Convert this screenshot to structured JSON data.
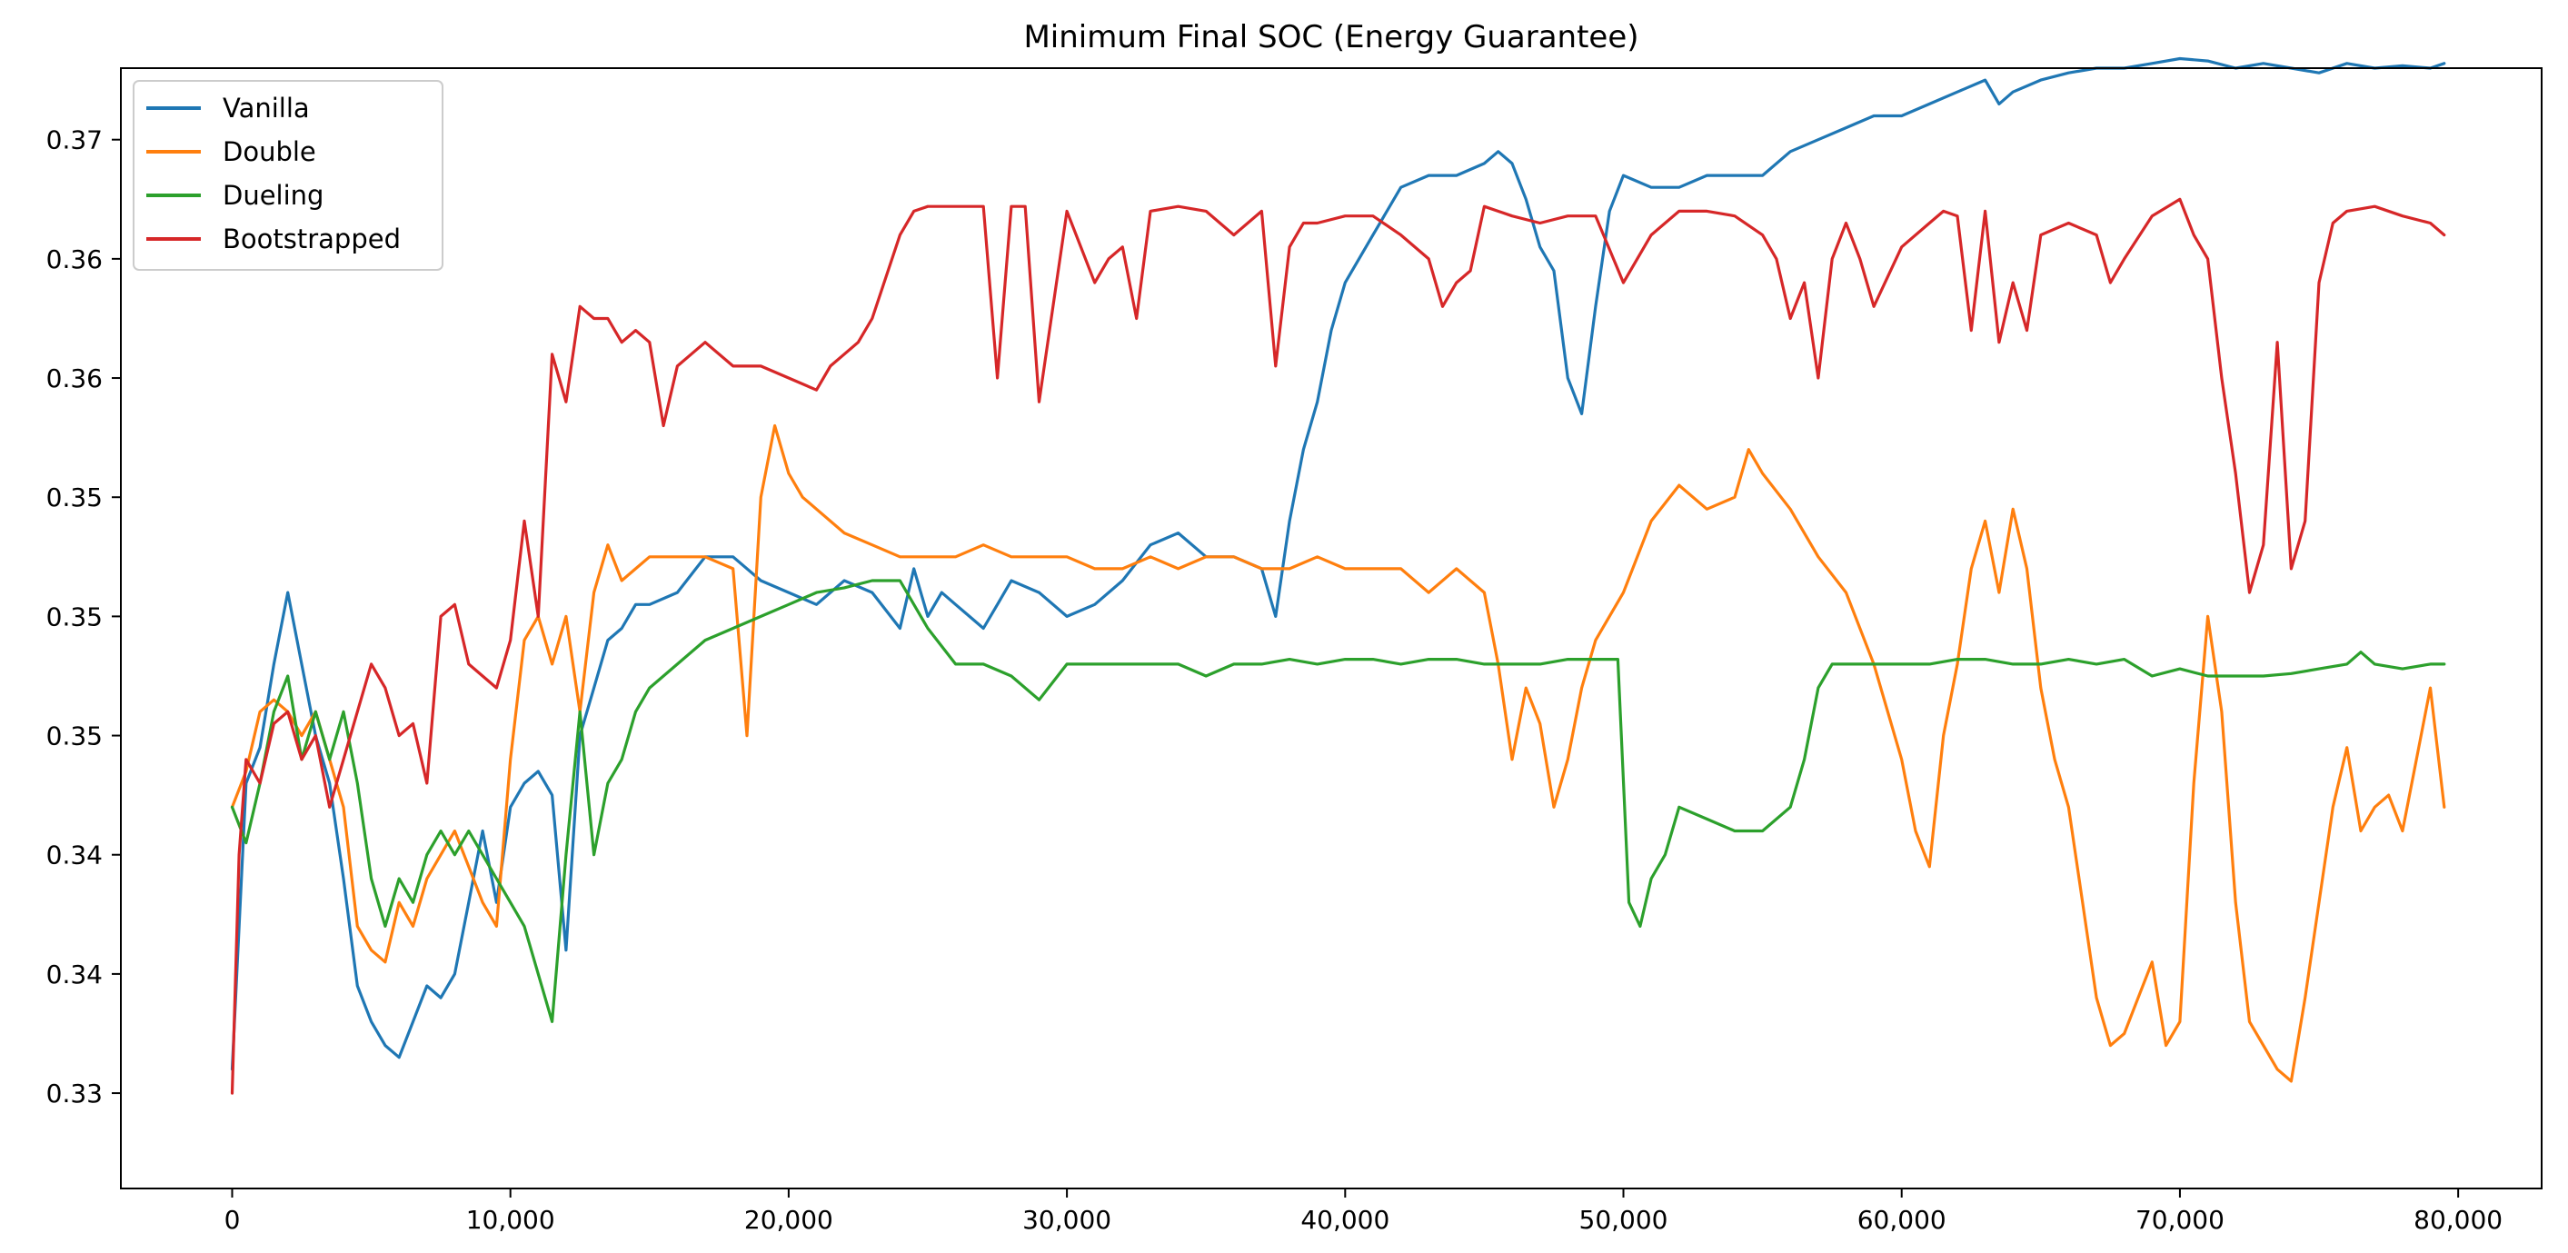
{
  "chart_data": {
    "type": "line",
    "title": "Minimum Final SOC (Energy Guarantee)",
    "xlabel": "",
    "ylabel": "",
    "xlim": [
      -4000,
      83000
    ],
    "ylim": [
      0.326,
      0.373
    ],
    "x_ticks": [
      0,
      10000,
      20000,
      30000,
      40000,
      50000,
      60000,
      70000,
      80000
    ],
    "x_tick_labels": [
      "0",
      "10,000",
      "20,000",
      "30,000",
      "40,000",
      "50,000",
      "60,000",
      "70,000",
      "80,000"
    ],
    "y_ticks": [
      0.33,
      0.335,
      0.34,
      0.345,
      0.35,
      0.355,
      0.36,
      0.365,
      0.37
    ],
    "y_tick_labels": [
      "0.33",
      "0.34",
      "0.34",
      "0.35",
      "0.35",
      "0.35",
      "0.36",
      "0.36",
      "0.37"
    ],
    "grid": false,
    "legend": "upper-left",
    "series": [
      {
        "name": "Vanilla",
        "color": "#1f77b4",
        "x": [
          0,
          500,
          1000,
          1500,
          2000,
          2500,
          3000,
          3500,
          4000,
          4500,
          5000,
          5500,
          6000,
          6500,
          7000,
          7500,
          8000,
          8500,
          9000,
          9500,
          10000,
          10500,
          11000,
          11500,
          12000,
          12500,
          13000,
          13500,
          14000,
          14500,
          15000,
          16000,
          17000,
          18000,
          19000,
          20000,
          21000,
          22000,
          23000,
          24000,
          24500,
          25000,
          25500,
          26000,
          26500,
          27000,
          27500,
          28000,
          29000,
          30000,
          31000,
          32000,
          33000,
          34000,
          35000,
          36000,
          37000,
          37500,
          38000,
          38500,
          39000,
          39500,
          40000,
          41000,
          42000,
          43000,
          44000,
          45000,
          45500,
          46000,
          46500,
          47000,
          47500,
          48000,
          48500,
          49000,
          49500,
          50000,
          51000,
          52000,
          53000,
          54000,
          55000,
          56000,
          57000,
          58000,
          59000,
          60000,
          61000,
          62000,
          63000,
          63500,
          64000,
          65000,
          66000,
          67000,
          68000,
          69000,
          70000,
          71000,
          72000,
          73000,
          74000,
          75000,
          76000,
          77000,
          78000,
          79000,
          79500
        ],
        "values": [
          0.331,
          0.343,
          0.3445,
          0.348,
          0.351,
          0.348,
          0.345,
          0.343,
          0.339,
          0.3345,
          0.333,
          0.332,
          0.3315,
          0.333,
          0.3345,
          0.334,
          0.335,
          0.338,
          0.341,
          0.338,
          0.342,
          0.343,
          0.3435,
          0.3425,
          0.336,
          0.345,
          0.347,
          0.349,
          0.3495,
          0.3505,
          0.3505,
          0.351,
          0.3525,
          0.3525,
          0.3515,
          0.351,
          0.3505,
          0.3515,
          0.351,
          0.3495,
          0.352,
          0.35,
          0.351,
          0.3505,
          0.35,
          0.3495,
          0.3505,
          0.3515,
          0.351,
          0.35,
          0.3505,
          0.3515,
          0.353,
          0.3535,
          0.3525,
          0.3525,
          0.352,
          0.35,
          0.354,
          0.357,
          0.359,
          0.362,
          0.364,
          0.366,
          0.368,
          0.3685,
          0.3685,
          0.369,
          0.3695,
          0.369,
          0.3675,
          0.3655,
          0.3645,
          0.36,
          0.3585,
          0.363,
          0.367,
          0.3685,
          0.368,
          0.368,
          0.3685,
          0.3685,
          0.3685,
          0.3695,
          0.37,
          0.3705,
          0.371,
          0.371,
          0.3715,
          0.372,
          0.3725,
          0.3715,
          0.372,
          0.3725,
          0.3728,
          0.373,
          0.373,
          0.3732,
          0.3734,
          0.3733,
          0.373,
          0.3732,
          0.373,
          0.3728,
          0.3732,
          0.373,
          0.3731,
          0.373,
          0.3732
        ]
      },
      {
        "name": "Double",
        "color": "#ff7f0e",
        "x": [
          0,
          500,
          1000,
          1500,
          2000,
          2500,
          3000,
          3500,
          4000,
          4500,
          5000,
          5500,
          6000,
          6500,
          7000,
          7500,
          8000,
          8500,
          9000,
          9500,
          10000,
          10500,
          11000,
          11500,
          12000,
          12500,
          13000,
          13500,
          14000,
          14500,
          15000,
          16000,
          17000,
          18000,
          18500,
          19000,
          19500,
          20000,
          20500,
          21000,
          22000,
          23000,
          24000,
          25000,
          26000,
          27000,
          28000,
          29000,
          30000,
          31000,
          32000,
          33000,
          34000,
          35000,
          36000,
          37000,
          38000,
          39000,
          40000,
          41000,
          42000,
          43000,
          44000,
          45000,
          45500,
          46000,
          46500,
          47000,
          47500,
          48000,
          48500,
          49000,
          50000,
          51000,
          52000,
          53000,
          54000,
          54500,
          55000,
          56000,
          57000,
          58000,
          59000,
          60000,
          60500,
          61000,
          61500,
          62000,
          62500,
          63000,
          63500,
          64000,
          64500,
          65000,
          65500,
          66000,
          66500,
          67000,
          67500,
          68000,
          68500,
          69000,
          69500,
          70000,
          70500,
          71000,
          71500,
          72000,
          72500,
          73000,
          73500,
          74000,
          74500,
          75000,
          75500,
          76000,
          76500,
          77000,
          77500,
          78000,
          78500,
          79000,
          79500
        ],
        "values": [
          0.342,
          0.3435,
          0.346,
          0.3465,
          0.346,
          0.345,
          0.346,
          0.344,
          0.342,
          0.337,
          0.336,
          0.3355,
          0.338,
          0.337,
          0.339,
          0.34,
          0.341,
          0.3395,
          0.338,
          0.337,
          0.344,
          0.349,
          0.35,
          0.348,
          0.35,
          0.346,
          0.351,
          0.353,
          0.3515,
          0.352,
          0.3525,
          0.3525,
          0.3525,
          0.352,
          0.345,
          0.355,
          0.358,
          0.356,
          0.355,
          0.3545,
          0.3535,
          0.353,
          0.3525,
          0.3525,
          0.3525,
          0.353,
          0.3525,
          0.3525,
          0.3525,
          0.352,
          0.352,
          0.3525,
          0.352,
          0.3525,
          0.3525,
          0.352,
          0.352,
          0.3525,
          0.352,
          0.352,
          0.352,
          0.351,
          0.352,
          0.351,
          0.348,
          0.344,
          0.347,
          0.3455,
          0.342,
          0.344,
          0.347,
          0.349,
          0.351,
          0.354,
          0.3555,
          0.3545,
          0.355,
          0.357,
          0.356,
          0.3545,
          0.3525,
          0.351,
          0.348,
          0.344,
          0.341,
          0.3395,
          0.345,
          0.348,
          0.352,
          0.354,
          0.351,
          0.3545,
          0.352,
          0.347,
          0.344,
          0.342,
          0.338,
          0.334,
          0.332,
          0.3325,
          0.334,
          0.3355,
          0.332,
          0.333,
          0.343,
          0.35,
          0.346,
          0.338,
          0.333,
          0.332,
          0.331,
          0.3305,
          0.334,
          0.338,
          0.342,
          0.3445,
          0.341,
          0.342,
          0.3425,
          0.341,
          0.344,
          0.347,
          0.342
        ]
      },
      {
        "name": "Dueling",
        "color": "#2ca02c",
        "x": [
          0,
          500,
          1000,
          1500,
          2000,
          2500,
          3000,
          3500,
          4000,
          4500,
          5000,
          5500,
          6000,
          6500,
          7000,
          7500,
          8000,
          8500,
          9000,
          9500,
          10000,
          10500,
          11000,
          11500,
          12000,
          12500,
          13000,
          13500,
          14000,
          14500,
          15000,
          16000,
          17000,
          18000,
          19000,
          20000,
          21000,
          22000,
          23000,
          24000,
          25000,
          26000,
          27000,
          28000,
          29000,
          30000,
          31000,
          32000,
          33000,
          34000,
          35000,
          36000,
          37000,
          38000,
          39000,
          40000,
          41000,
          42000,
          43000,
          44000,
          45000,
          46000,
          47000,
          48000,
          49000,
          49800,
          50200,
          50600,
          51000,
          51500,
          52000,
          53000,
          54000,
          55000,
          56000,
          56500,
          57000,
          57500,
          58000,
          59000,
          60000,
          61000,
          62000,
          63000,
          64000,
          65000,
          66000,
          67000,
          68000,
          69000,
          70000,
          71000,
          72000,
          73000,
          74000,
          75000,
          76000,
          76500,
          77000,
          78000,
          79000,
          79500
        ],
        "values": [
          0.342,
          0.3405,
          0.343,
          0.346,
          0.3475,
          0.344,
          0.346,
          0.344,
          0.346,
          0.343,
          0.339,
          0.337,
          0.339,
          0.338,
          0.34,
          0.341,
          0.34,
          0.341,
          0.34,
          0.339,
          0.338,
          0.337,
          0.335,
          0.333,
          0.34,
          0.346,
          0.34,
          0.343,
          0.344,
          0.346,
          0.347,
          0.348,
          0.349,
          0.3495,
          0.35,
          0.3505,
          0.351,
          0.3512,
          0.3515,
          0.3515,
          0.3495,
          0.348,
          0.348,
          0.3475,
          0.3465,
          0.348,
          0.348,
          0.348,
          0.348,
          0.348,
          0.3475,
          0.348,
          0.348,
          0.3482,
          0.348,
          0.3482,
          0.3482,
          0.348,
          0.3482,
          0.3482,
          0.348,
          0.348,
          0.348,
          0.3482,
          0.3482,
          0.3482,
          0.338,
          0.337,
          0.339,
          0.34,
          0.342,
          0.3415,
          0.341,
          0.341,
          0.342,
          0.344,
          0.347,
          0.348,
          0.348,
          0.348,
          0.348,
          0.348,
          0.3482,
          0.3482,
          0.348,
          0.348,
          0.3482,
          0.348,
          0.3482,
          0.3475,
          0.3478,
          0.3475,
          0.3475,
          0.3475,
          0.3476,
          0.3478,
          0.348,
          0.3485,
          0.348,
          0.3478,
          0.348,
          0.348
        ]
      },
      {
        "name": "Bootstrapped",
        "color": "#d62728",
        "x": [
          0,
          250,
          500,
          1000,
          1500,
          2000,
          2500,
          3000,
          3500,
          4000,
          4500,
          5000,
          5500,
          6000,
          6500,
          7000,
          7500,
          8000,
          8500,
          9000,
          9500,
          10000,
          10500,
          11000,
          11500,
          12000,
          12500,
          13000,
          13500,
          14000,
          14500,
          15000,
          15500,
          16000,
          16500,
          17000,
          18000,
          19000,
          20000,
          21000,
          21500,
          22000,
          22500,
          23000,
          24000,
          24500,
          25000,
          26000,
          27000,
          27500,
          28000,
          28500,
          29000,
          30000,
          31000,
          31500,
          32000,
          32500,
          33000,
          34000,
          35000,
          36000,
          37000,
          37500,
          38000,
          38500,
          39000,
          40000,
          41000,
          42000,
          43000,
          43500,
          44000,
          44500,
          45000,
          46000,
          47000,
          48000,
          49000,
          50000,
          51000,
          52000,
          53000,
          54000,
          55000,
          55500,
          56000,
          56500,
          57000,
          57500,
          58000,
          58500,
          59000,
          60000,
          61000,
          61500,
          62000,
          62500,
          63000,
          63500,
          64000,
          64500,
          65000,
          66000,
          67000,
          67500,
          68000,
          69000,
          70000,
          70500,
          71000,
          71500,
          72000,
          72500,
          73000,
          73500,
          74000,
          74500,
          75000,
          75500,
          76000,
          77000,
          78000,
          79000,
          79500
        ],
        "values": [
          0.33,
          0.34,
          0.344,
          0.343,
          0.3455,
          0.346,
          0.344,
          0.345,
          0.342,
          0.344,
          0.346,
          0.348,
          0.347,
          0.345,
          0.3455,
          0.343,
          0.35,
          0.3505,
          0.348,
          0.3475,
          0.347,
          0.349,
          0.354,
          0.35,
          0.361,
          0.359,
          0.363,
          0.3625,
          0.3625,
          0.3615,
          0.362,
          0.3615,
          0.358,
          0.3605,
          0.361,
          0.3615,
          0.3605,
          0.3605,
          0.36,
          0.3595,
          0.3605,
          0.361,
          0.3615,
          0.3625,
          0.366,
          0.367,
          0.3672,
          0.3672,
          0.3672,
          0.36,
          0.3672,
          0.3672,
          0.359,
          0.367,
          0.364,
          0.365,
          0.3655,
          0.3625,
          0.367,
          0.3672,
          0.367,
          0.366,
          0.367,
          0.3605,
          0.3655,
          0.3665,
          0.3665,
          0.3668,
          0.3668,
          0.366,
          0.365,
          0.363,
          0.364,
          0.3645,
          0.3672,
          0.3668,
          0.3665,
          0.3668,
          0.3668,
          0.364,
          0.366,
          0.367,
          0.367,
          0.3668,
          0.366,
          0.365,
          0.3625,
          0.364,
          0.36,
          0.365,
          0.3665,
          0.365,
          0.363,
          0.3655,
          0.3665,
          0.367,
          0.3668,
          0.362,
          0.367,
          0.3615,
          0.364,
          0.362,
          0.366,
          0.3665,
          0.366,
          0.364,
          0.365,
          0.3668,
          0.3675,
          0.366,
          0.365,
          0.36,
          0.356,
          0.351,
          0.353,
          0.3615,
          0.352,
          0.354,
          0.364,
          0.3665,
          0.367,
          0.3672,
          0.3668,
          0.3665,
          0.366
        ]
      }
    ]
  }
}
